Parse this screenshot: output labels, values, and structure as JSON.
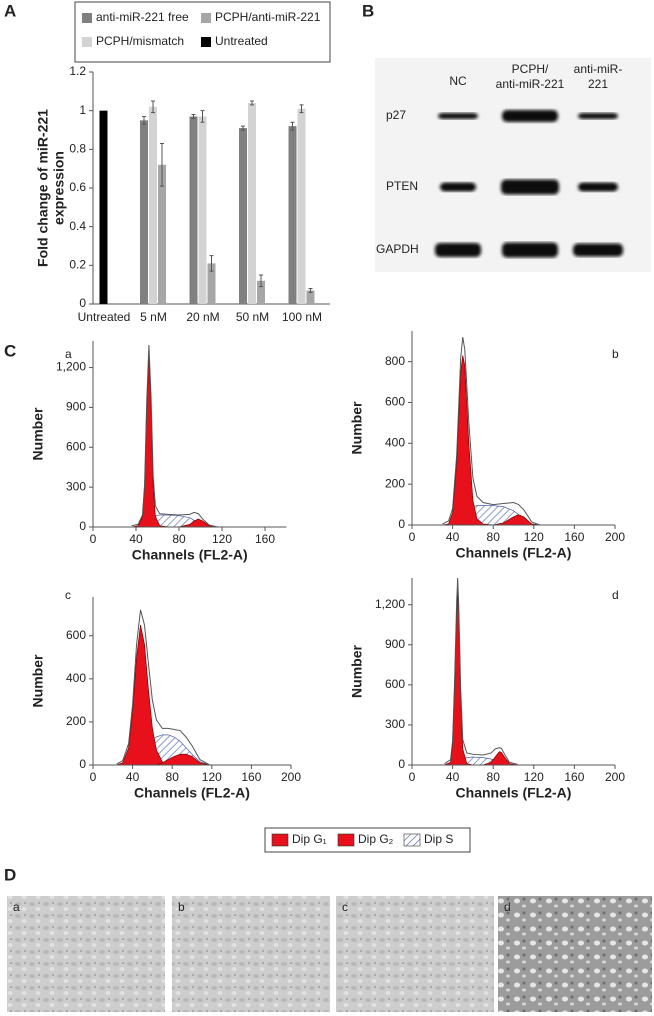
{
  "panel_labels": [
    "A",
    "B",
    "C",
    "D"
  ],
  "chart_data": [
    {
      "type": "bar",
      "categories": [
        "Untreated",
        "5 nM",
        "20 nM",
        "50 nM",
        "100 nM"
      ],
      "series": [
        {
          "name": "anti-miR-221 free",
          "color": "#808080",
          "values": [
            null,
            0.95,
            0.97,
            0.91,
            0.92
          ],
          "errors": [
            null,
            0.02,
            0.01,
            0.01,
            0.02
          ]
        },
        {
          "name": "PCPH/mismatch",
          "color": "#d3d3d3",
          "values": [
            null,
            1.02,
            0.97,
            1.04,
            1.01
          ],
          "errors": [
            null,
            0.03,
            0.03,
            0.01,
            0.02
          ]
        },
        {
          "name": "PCPH/anti-miR-221",
          "color": "#a6a6a6",
          "values": [
            null,
            0.72,
            0.21,
            0.12,
            0.07
          ],
          "errors": [
            null,
            0.11,
            0.04,
            0.03,
            0.01
          ]
        },
        {
          "name": "Untreated",
          "color": "#000000",
          "values": [
            1,
            null,
            null,
            null,
            null
          ],
          "errors": [
            null,
            null,
            null,
            null,
            null
          ]
        }
      ],
      "ylim": [
        0,
        1.2
      ],
      "yticks": [
        0,
        0.2,
        0.4,
        0.6,
        0.8,
        1,
        1.2
      ],
      "ylabel": [
        "Fold change of miR-221",
        "expression"
      ]
    },
    {
      "type": "cell_cycle",
      "title": "a",
      "xlabel": "Channels (FL2-A)",
      "ylabel": "Number",
      "xlim": [
        0,
        180
      ],
      "xticks": [
        0,
        40,
        80,
        120,
        160
      ],
      "ylim": [
        0,
        1400
      ],
      "yticks": [
        0,
        300,
        600,
        900,
        {
          "value": 1200,
          "label": "1,200"
        }
      ],
      "x": [
        36,
        42,
        46,
        48,
        50,
        52,
        54,
        56,
        58,
        62,
        70,
        80,
        90,
        94,
        98,
        102,
        108,
        116
      ],
      "series": [
        {
          "color": "#e8101a",
          "values": [
            0,
            10,
            80,
            300,
            900,
            1300,
            900,
            300,
            80,
            10,
            0,
            0,
            0,
            0,
            0,
            0,
            0,
            0
          ]
        },
        {
          "color": "#4a5fa8",
          "pattern": "hatch",
          "values": [
            0,
            0,
            0,
            10,
            30,
            50,
            70,
            80,
            85,
            90,
            90,
            85,
            70,
            50,
            30,
            10,
            0,
            0
          ]
        },
        {
          "color": "#e8101a",
          "values": [
            0,
            0,
            0,
            0,
            0,
            0,
            0,
            0,
            0,
            0,
            0,
            0,
            20,
            45,
            60,
            45,
            10,
            0
          ]
        },
        {
          "color": "#555555",
          "values": [
            10,
            20,
            90,
            320,
            950,
            1370,
            980,
            380,
            160,
            100,
            95,
            90,
            95,
            110,
            100,
            60,
            15,
            0
          ]
        }
      ]
    },
    {
      "type": "cell_cycle",
      "title": "b",
      "xlabel": "Channels (FL2-A)",
      "ylabel": "Number",
      "xlim": [
        0,
        200
      ],
      "xticks": [
        0,
        40,
        80,
        120,
        160,
        200
      ],
      "ylim": [
        0,
        950
      ],
      "yticks": [
        0,
        200,
        400,
        600,
        800
      ],
      "x": [
        30,
        36,
        40,
        44,
        48,
        50,
        52,
        56,
        60,
        64,
        70,
        80,
        90,
        100,
        105,
        110,
        118,
        126
      ],
      "series": [
        {
          "color": "#e8101a",
          "values": [
            0,
            5,
            60,
            300,
            750,
            830,
            780,
            400,
            120,
            30,
            5,
            0,
            0,
            0,
            0,
            0,
            0,
            0
          ]
        },
        {
          "color": "#4a5fa8",
          "pattern": "hatch",
          "values": [
            0,
            0,
            5,
            20,
            50,
            60,
            70,
            85,
            90,
            95,
            95,
            95,
            90,
            70,
            50,
            30,
            5,
            0
          ]
        },
        {
          "color": "#e8101a",
          "values": [
            0,
            0,
            0,
            0,
            0,
            0,
            0,
            0,
            0,
            0,
            0,
            0,
            10,
            40,
            50,
            40,
            5,
            0
          ]
        },
        {
          "color": "#555555",
          "values": [
            5,
            20,
            80,
            340,
            820,
            920,
            860,
            500,
            230,
            140,
            110,
            100,
            105,
            110,
            100,
            75,
            15,
            0
          ]
        }
      ]
    },
    {
      "type": "cell_cycle",
      "title": "c",
      "xlabel": "Channels (FL2-A)",
      "ylabel": "Number",
      "xlim": [
        0,
        200
      ],
      "xticks": [
        0,
        40,
        80,
        120,
        160,
        200
      ],
      "ylim": [
        0,
        780
      ],
      "yticks": [
        0,
        200,
        400,
        600
      ],
      "x": [
        24,
        30,
        36,
        40,
        44,
        48,
        52,
        56,
        60,
        64,
        70,
        76,
        82,
        88,
        94,
        100,
        108,
        118
      ],
      "series": [
        {
          "color": "#e8101a",
          "values": [
            0,
            10,
            80,
            250,
            500,
            650,
            560,
            350,
            170,
            70,
            15,
            0,
            0,
            0,
            0,
            0,
            0,
            0
          ]
        },
        {
          "color": "#4a5fa8",
          "pattern": "hatch",
          "values": [
            0,
            0,
            5,
            15,
            30,
            50,
            70,
            100,
            120,
            130,
            140,
            140,
            130,
            110,
            80,
            50,
            15,
            0
          ]
        },
        {
          "color": "#e8101a",
          "values": [
            0,
            0,
            0,
            0,
            0,
            0,
            0,
            0,
            0,
            0,
            10,
            25,
            40,
            50,
            50,
            40,
            10,
            0
          ]
        },
        {
          "color": "#555555",
          "values": [
            5,
            20,
            100,
            280,
            560,
            720,
            650,
            470,
            300,
            210,
            170,
            170,
            165,
            160,
            130,
            90,
            25,
            0
          ]
        }
      ]
    },
    {
      "type": "cell_cycle",
      "title": "d",
      "xlabel": "Channels (FL2-A)",
      "ylabel": "Number",
      "xlim": [
        0,
        200
      ],
      "xticks": [
        0,
        40,
        80,
        120,
        160,
        200
      ],
      "ylim": [
        0,
        1400
      ],
      "yticks": [
        0,
        300,
        600,
        900,
        {
          "value": 1200,
          "label": "1,200"
        }
      ],
      "x": [
        32,
        38,
        40,
        42,
        44,
        45,
        46,
        48,
        50,
        54,
        60,
        70,
        78,
        82,
        86,
        88,
        92,
        96,
        104
      ],
      "series": [
        {
          "color": "#e8101a",
          "values": [
            0,
            20,
            150,
            600,
            1150,
            1300,
            1150,
            500,
            120,
            10,
            0,
            0,
            0,
            0,
            0,
            0,
            0,
            0,
            0
          ]
        },
        {
          "color": "#4a5fa8",
          "pattern": "hatch",
          "values": [
            0,
            0,
            0,
            5,
            10,
            15,
            20,
            30,
            40,
            55,
            60,
            55,
            45,
            35,
            25,
            20,
            10,
            0,
            0
          ]
        },
        {
          "color": "#e8101a",
          "values": [
            0,
            0,
            0,
            0,
            0,
            0,
            0,
            0,
            0,
            0,
            0,
            0,
            20,
            60,
            100,
            95,
            50,
            10,
            0
          ]
        },
        {
          "color": "#555555",
          "values": [
            10,
            40,
            180,
            640,
            1220,
            1400,
            1200,
            560,
            190,
            90,
            80,
            75,
            90,
            120,
            130,
            125,
            70,
            20,
            5
          ]
        }
      ]
    }
  ],
  "cell_cycle_legend": [
    {
      "name": "Dip G₁",
      "color": "#e8101a"
    },
    {
      "name": "Dip G₂",
      "color": "#e8101a"
    },
    {
      "name": "Dip S",
      "color": "#4a5fa8",
      "pattern": "hatch"
    }
  ],
  "blot": {
    "lanes": [
      [
        "NC"
      ],
      [
        "PCPH/",
        "anti-miR-221"
      ],
      [
        "anti-miR-",
        "221"
      ]
    ],
    "bands": [
      "p27",
      "PTEN",
      "GAPDH"
    ]
  },
  "micrographs": {
    "labels": [
      "a",
      "b",
      "c",
      "d"
    ]
  }
}
